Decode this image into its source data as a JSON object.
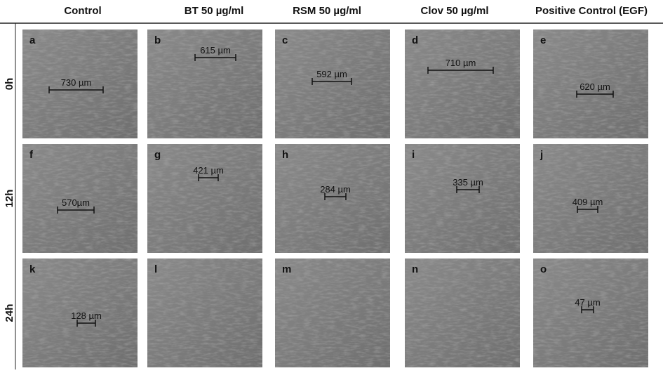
{
  "header": {
    "columns": [
      "Control",
      "BT 50 µg/ml",
      "RSM 50 µg/ml",
      "Clov 50 µg/ml",
      "Positive Control (EGF)"
    ]
  },
  "rows": [
    {
      "label": "0h",
      "panels": [
        {
          "letter": "a",
          "measurement": "730 µm"
        },
        {
          "letter": "b",
          "measurement": "615 µm"
        },
        {
          "letter": "c",
          "measurement": "592 µm"
        },
        {
          "letter": "d",
          "measurement": "710 µm"
        },
        {
          "letter": "e",
          "measurement": "620 µm"
        }
      ]
    },
    {
      "label": "12h",
      "panels": [
        {
          "letter": "f",
          "measurement": "570µm"
        },
        {
          "letter": "g",
          "measurement": "421 µm"
        },
        {
          "letter": "h",
          "measurement": "284 µm"
        },
        {
          "letter": "i",
          "measurement": "335 µm"
        },
        {
          "letter": "j",
          "measurement": "409 µm"
        }
      ]
    },
    {
      "label": "24h",
      "panels": [
        {
          "letter": "k",
          "measurement": "128 µm"
        },
        {
          "letter": "l"
        },
        {
          "letter": "m"
        },
        {
          "letter": "n"
        },
        {
          "letter": "o",
          "measurement": "47 µm"
        }
      ]
    }
  ]
}
